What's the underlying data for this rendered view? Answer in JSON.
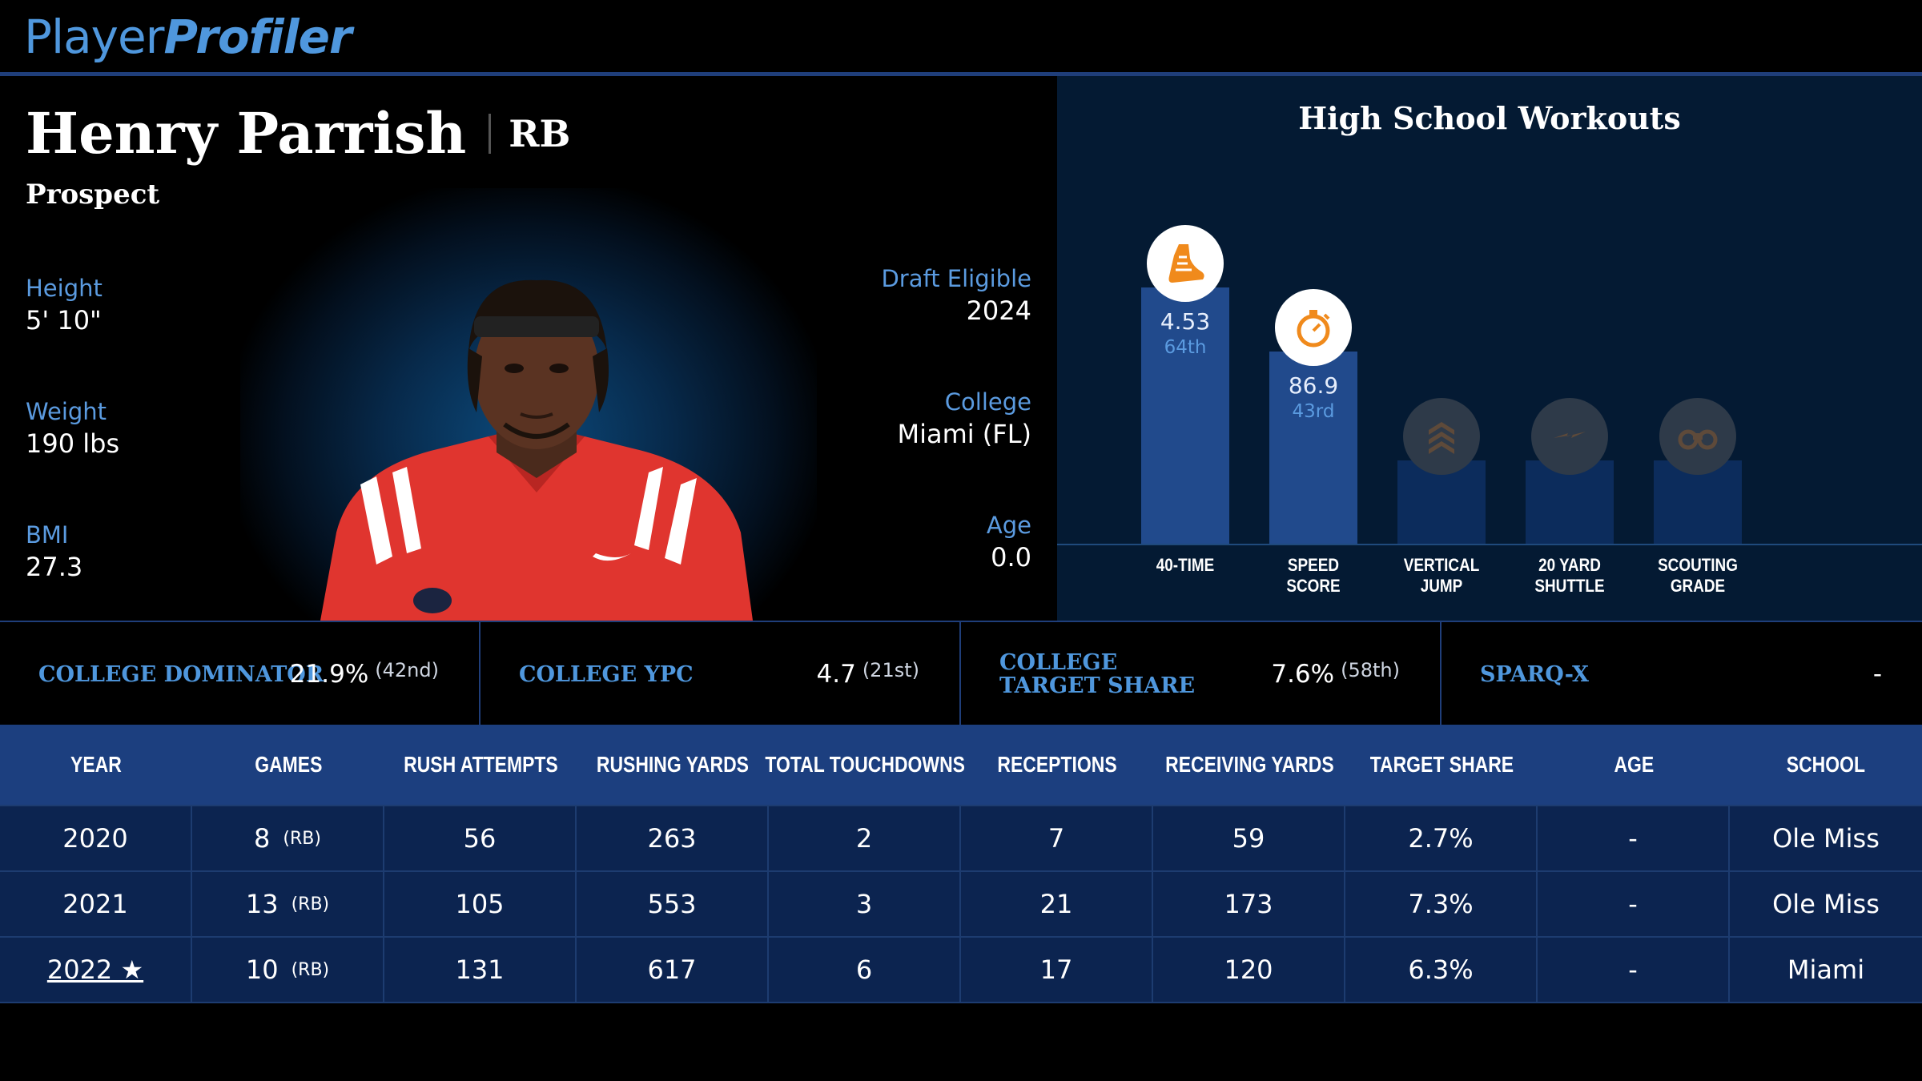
{
  "brand": {
    "part1": "Player",
    "part2": "Profiler"
  },
  "player": {
    "name": "Henry Parrish",
    "position": "RB",
    "status": "Prospect",
    "left_stats": [
      {
        "label": "Height",
        "value": "5' 10\""
      },
      {
        "label": "Weight",
        "value": "190 lbs"
      },
      {
        "label": "BMI",
        "value": "27.3"
      }
    ],
    "right_stats": [
      {
        "label": "Draft Eligible",
        "value": "2024"
      },
      {
        "label": "College",
        "value": "Miami (FL)"
      },
      {
        "label": "Age",
        "value": "0.0"
      }
    ]
  },
  "workouts": {
    "title": "High School Workouts",
    "items": [
      {
        "label_line1": "40-TIME",
        "label_line2": "",
        "value": "4.53",
        "rank": "64th",
        "level_pct": 64,
        "icon": "shoe-icon",
        "active": true
      },
      {
        "label_line1": "SPEED",
        "label_line2": "SCORE",
        "value": "86.9",
        "rank": "43rd",
        "level_pct": 43,
        "icon": "stopwatch-icon",
        "active": true
      },
      {
        "label_line1": "VERTICAL",
        "label_line2": "JUMP",
        "value": "",
        "rank": "",
        "icon": "chevrons-up-icon",
        "active": false
      },
      {
        "label_line1": "20 YARD",
        "label_line2": "SHUTTLE",
        "value": "",
        "rank": "",
        "icon": "lightning-icon",
        "active": false
      },
      {
        "label_line1": "SCOUTING",
        "label_line2": "GRADE",
        "value": "",
        "rank": "",
        "icon": "binoculars-icon",
        "active": false
      }
    ]
  },
  "metrics": [
    {
      "label": "COLLEGE DOMINATOR",
      "value": "21.9%",
      "rank": "(42nd)"
    },
    {
      "label": "COLLEGE YPC",
      "value": "4.7",
      "rank": "(21st)"
    },
    {
      "label": "COLLEGE TARGET SHARE",
      "value": "7.6%",
      "rank": "(58th)"
    },
    {
      "label": "SPARQ-X",
      "value": "-",
      "rank": ""
    }
  ],
  "table": {
    "headers": [
      "YEAR",
      "GAMES",
      "RUSH ATTEMPTS",
      "RUSHING YARDS",
      "TOTAL TOUCHDOWNS",
      "RECEPTIONS",
      "RECEIVING YARDS",
      "TARGET SHARE",
      "AGE",
      "SCHOOL"
    ],
    "rows": [
      {
        "year": "2020",
        "games": "8",
        "pos": "(RB)",
        "rush_att": "56",
        "rush_yds": "263",
        "tds": "2",
        "rec": "7",
        "rec_yds": "59",
        "target_share": "2.7%",
        "age": "-",
        "school": "Ole Miss"
      },
      {
        "year": "2021",
        "games": "13",
        "pos": "(RB)",
        "rush_att": "105",
        "rush_yds": "553",
        "tds": "3",
        "rec": "21",
        "rec_yds": "173",
        "target_share": "7.3%",
        "age": "-",
        "school": "Ole Miss"
      },
      {
        "year": "2022 ★",
        "games": "10",
        "pos": "(RB)",
        "rush_att": "131",
        "rush_yds": "617",
        "tds": "6",
        "rec": "17",
        "rec_yds": "120",
        "target_share": "6.3%",
        "age": "-",
        "school": "Miami"
      }
    ]
  },
  "colors": {
    "accent": "#4f97dd",
    "bar_active": "#214a8c",
    "bar_inactive": "#0c2c5c",
    "table_header": "#1c3f7f",
    "icon_orange": "#f08a1c"
  }
}
